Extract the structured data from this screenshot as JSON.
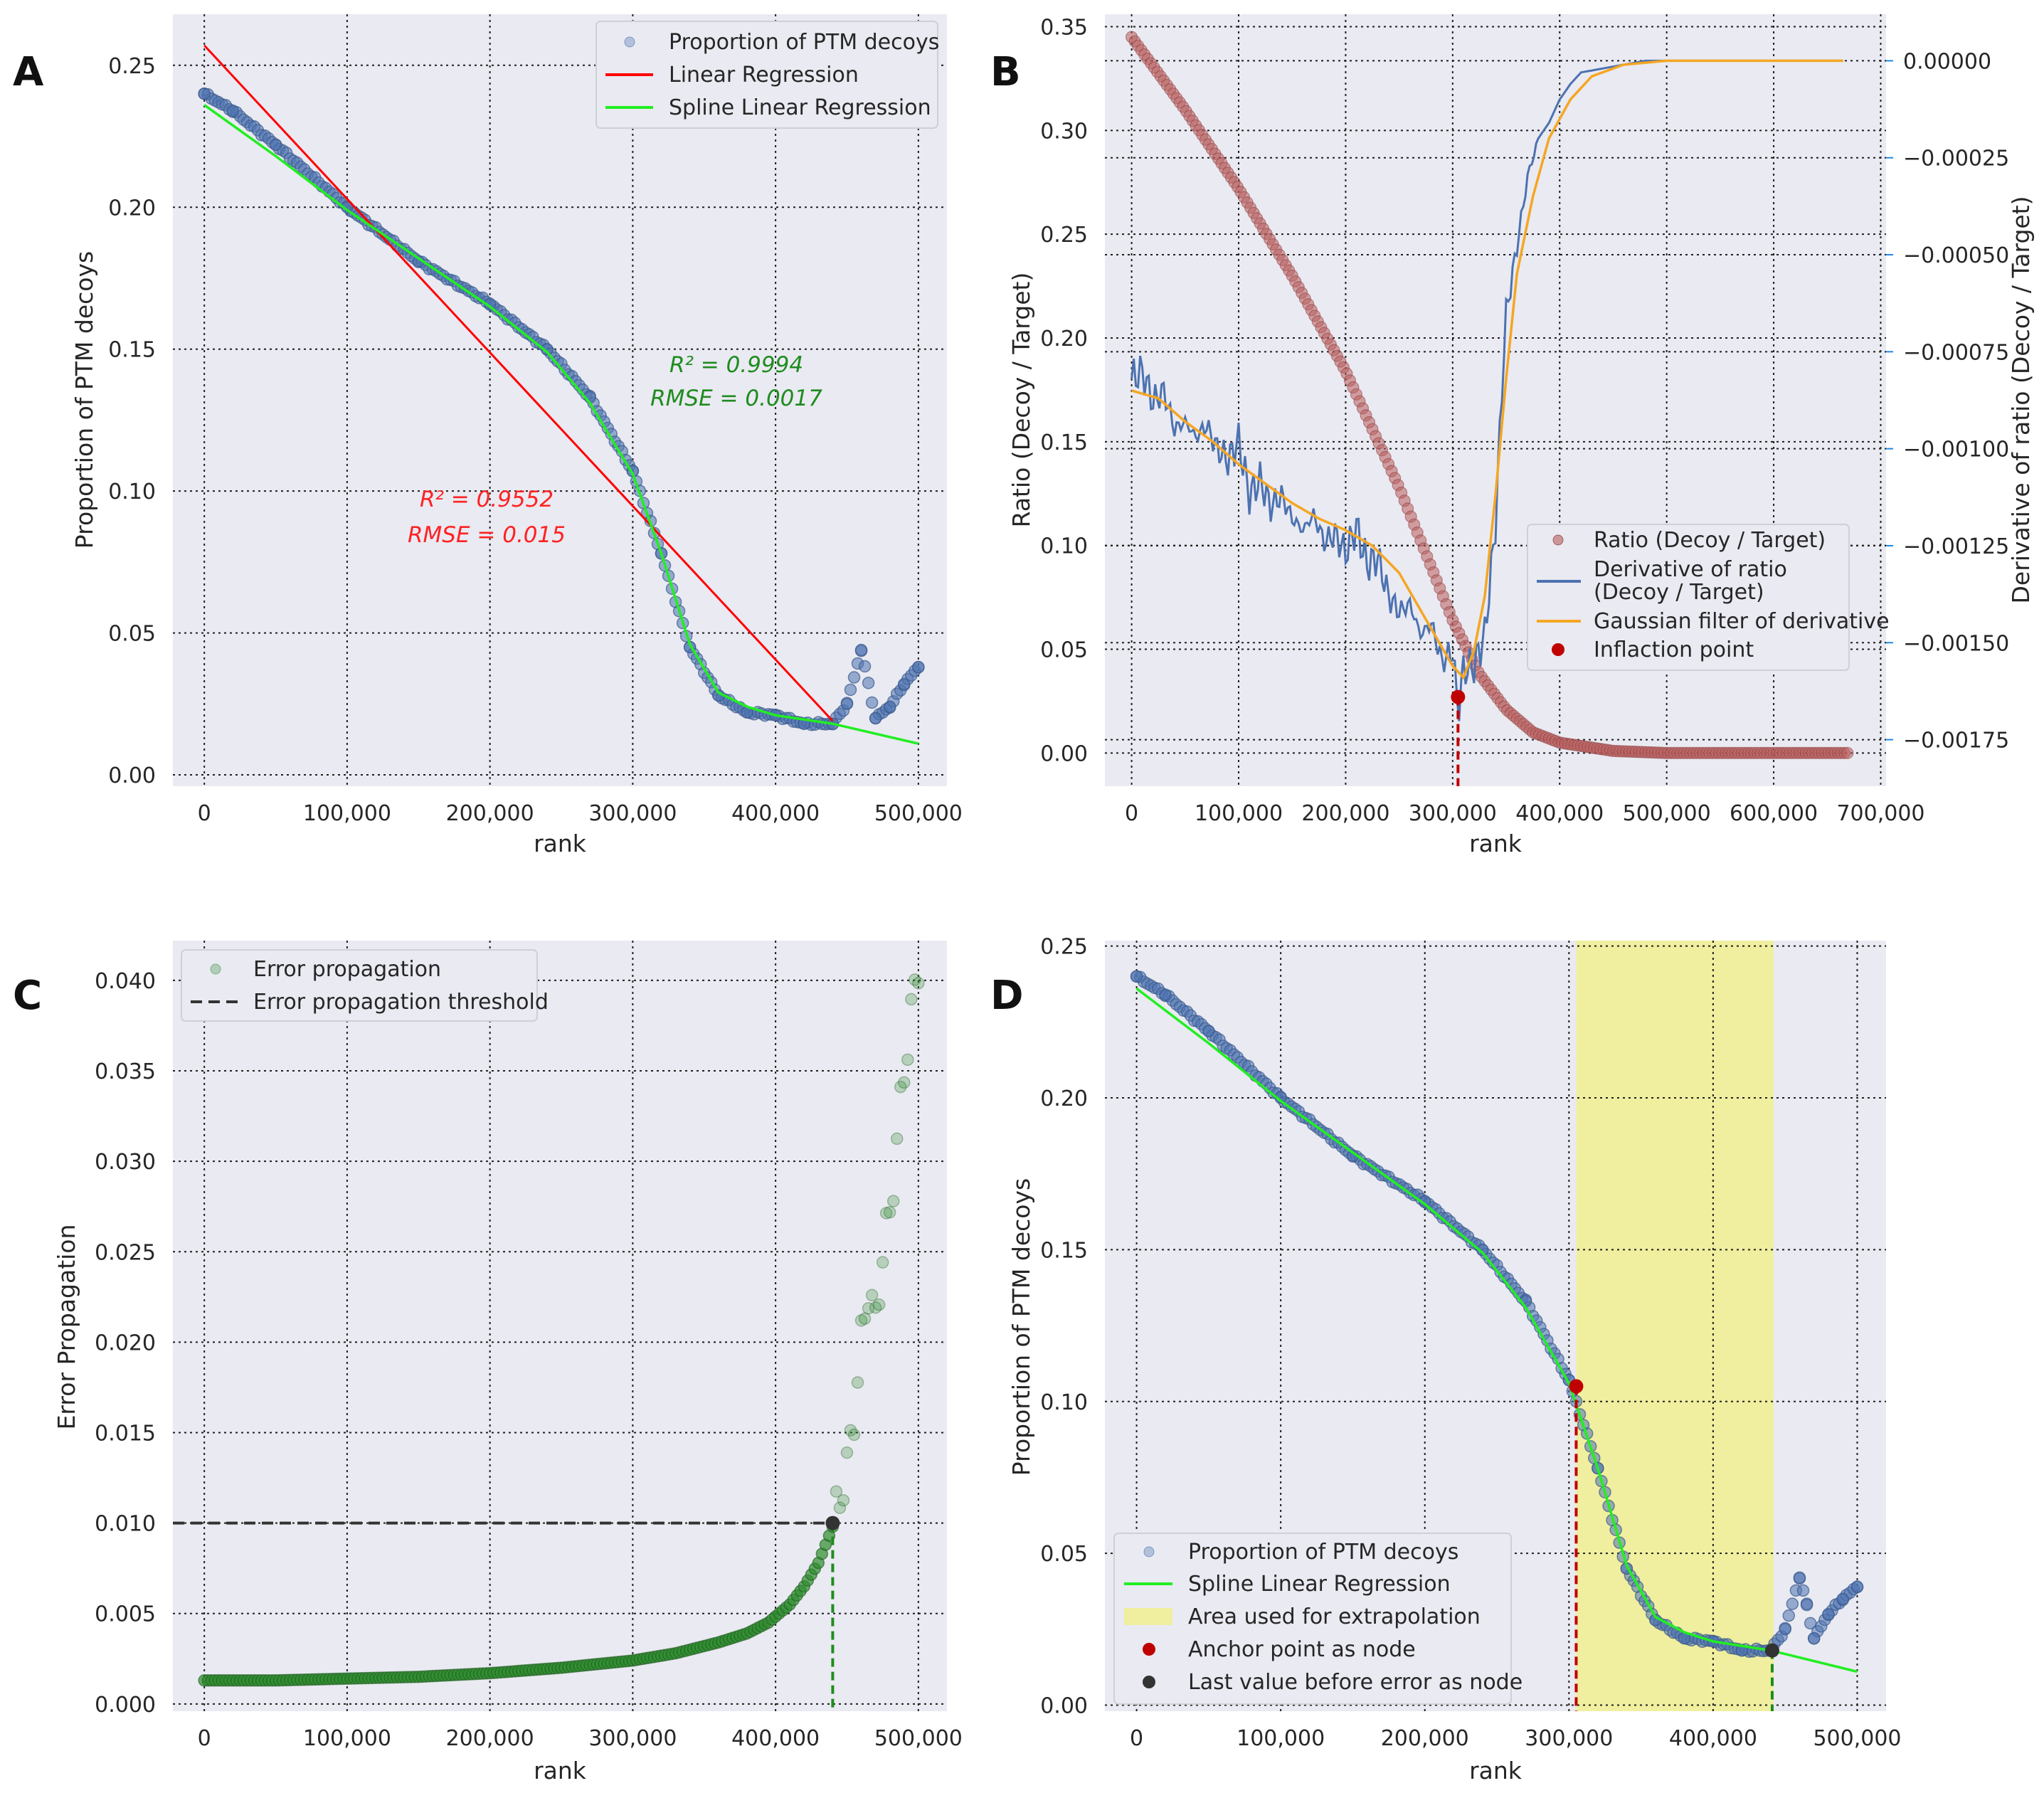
{
  "chart_data": [
    {
      "panel": "A",
      "type": "scatter",
      "xlabel": "rank",
      "ylabel": "Proportion of PTM decoys",
      "xlim": [
        -22000,
        520000
      ],
      "ylim": [
        -0.004,
        0.268
      ],
      "xticks": [
        0,
        100000,
        200000,
        300000,
        400000,
        500000
      ],
      "xtick_labels": [
        "0",
        "100,000",
        "200,000",
        "300,000",
        "400,000",
        "500,000"
      ],
      "yticks": [
        0.0,
        0.05,
        0.1,
        0.15,
        0.2,
        0.25
      ],
      "ytick_labels": [
        "0.00",
        "0.05",
        "0.10",
        "0.15",
        "0.20",
        "0.25"
      ],
      "series": [
        {
          "name": "Proportion of PTM decoys",
          "kind": "scatter",
          "color": "#4c72b0",
          "x": [
            0,
            20000,
            50000,
            100000,
            150000,
            200000,
            240000,
            270000,
            300000,
            320000,
            340000,
            360000,
            380000,
            400000,
            420000,
            440000,
            450000,
            460000,
            470000,
            480000,
            490000,
            500000
          ],
          "y": [
            0.24,
            0.234,
            0.222,
            0.2,
            0.181,
            0.166,
            0.15,
            0.133,
            0.107,
            0.078,
            0.045,
            0.028,
            0.022,
            0.021,
            0.018,
            0.018,
            0.025,
            0.044,
            0.02,
            0.024,
            0.032,
            0.038
          ]
        },
        {
          "name": "Linear Regression",
          "kind": "line",
          "color": "#ff0000",
          "x": [
            0,
            440000
          ],
          "y": [
            0.257,
            0.019
          ]
        },
        {
          "name": "Spline Linear Regression",
          "kind": "line",
          "color": "#22ee22",
          "x": [
            0,
            50000,
            100000,
            150000,
            200000,
            240000,
            270000,
            300000,
            320000,
            340000,
            360000,
            380000,
            400000,
            440000,
            500000
          ],
          "y": [
            0.236,
            0.218,
            0.199,
            0.182,
            0.165,
            0.149,
            0.131,
            0.106,
            0.078,
            0.046,
            0.029,
            0.024,
            0.021,
            0.018,
            0.011
          ]
        }
      ],
      "legend": {
        "position": "upper right",
        "entries": [
          "Proportion of PTM decoys",
          "Linear Regression",
          "Spline Linear Regression"
        ]
      },
      "annotations": [
        {
          "text_line1": "R² = 0.9994",
          "text_line2": "RMSE = 0.0017",
          "color": "#1e8c1e"
        },
        {
          "text_line1": "R² = 0.9552",
          "text_line2": "RMSE = 0.015",
          "color": "#ff2222"
        }
      ]
    },
    {
      "panel": "B",
      "type": "line",
      "xlabel": "rank",
      "ylabel": "Ratio (Decoy / Target)",
      "ylabel_right": "Derivative of ratio (Decoy / Target)",
      "xlim": [
        -25000,
        705000
      ],
      "ylim": [
        -0.016,
        0.356
      ],
      "ylim_right": [
        -0.00187,
        0.00012
      ],
      "xticks": [
        0,
        100000,
        200000,
        300000,
        400000,
        500000,
        600000,
        700000
      ],
      "xtick_labels": [
        "0",
        "100,000",
        "200,000",
        "300,000",
        "400,000",
        "500,000",
        "600,000",
        "700,000"
      ],
      "yticks": [
        0.0,
        0.05,
        0.1,
        0.15,
        0.2,
        0.25,
        0.3,
        0.35
      ],
      "ytick_labels": [
        "0.00",
        "0.05",
        "0.10",
        "0.15",
        "0.20",
        "0.25",
        "0.30",
        "0.35"
      ],
      "yticks_right": [
        0.0,
        -0.00025,
        -0.0005,
        -0.00075,
        -0.001,
        -0.00125,
        -0.0015,
        -0.00175
      ],
      "ytick_labels_right": [
        "0.00000",
        "−0.00025",
        "−0.00050",
        "−0.00075",
        "−0.00100",
        "−0.00125",
        "−0.00150",
        "−0.00175"
      ],
      "series": [
        {
          "name": "Ratio (Decoy / Target)",
          "axis": "left",
          "color": "#b85c5c",
          "x": [
            0,
            50000,
            100000,
            150000,
            200000,
            250000,
            300000,
            325000,
            350000,
            375000,
            400000,
            450000,
            500000,
            550000,
            600000,
            670000
          ],
          "y": [
            0.345,
            0.31,
            0.272,
            0.23,
            0.184,
            0.128,
            0.064,
            0.038,
            0.021,
            0.01,
            0.005,
            0.001,
            0.0,
            0.0,
            0.0,
            0.0
          ]
        },
        {
          "name": "Derivative of ratio (Decoy / Target)",
          "axis": "right",
          "color": "#4c72b0",
          "x": [
            0,
            10000,
            20000,
            30000,
            40000,
            50000,
            60000,
            70000,
            80000,
            90000,
            100000,
            110000,
            120000,
            130000,
            140000,
            150000,
            160000,
            170000,
            180000,
            190000,
            200000,
            210000,
            220000,
            230000,
            240000,
            250000,
            260000,
            270000,
            280000,
            290000,
            300000,
            305000,
            310000,
            320000,
            330000,
            340000,
            345000,
            350000,
            360000,
            370000,
            380000,
            390000,
            400000,
            410000,
            420000,
            440000,
            460000,
            480000,
            500000
          ],
          "y": [
            -0.00082,
            -0.0008,
            -0.00088,
            -0.00085,
            -0.00095,
            -0.00093,
            -0.00097,
            -0.00094,
            -0.001,
            -0.00103,
            -0.00098,
            -0.00112,
            -0.00108,
            -0.00115,
            -0.00112,
            -0.00118,
            -0.00121,
            -0.00117,
            -0.00124,
            -0.00122,
            -0.00127,
            -0.0012,
            -0.0013,
            -0.00128,
            -0.00138,
            -0.00142,
            -0.0014,
            -0.00148,
            -0.00145,
            -0.00155,
            -0.00152,
            -0.00168,
            -0.00157,
            -0.00156,
            -0.00148,
            -0.0012,
            -0.0009,
            -0.00065,
            -0.00048,
            -0.0003,
            -0.0002,
            -0.00016,
            -0.0001,
            -6e-05,
            -3e-05,
            -2e-05,
            -1e-05,
            0.0,
            0.0
          ]
        },
        {
          "name": "Gaussian filter of derivative",
          "axis": "right",
          "color": "#f5a623",
          "x": [
            0,
            25000,
            50000,
            75000,
            100000,
            125000,
            150000,
            175000,
            200000,
            225000,
            250000,
            275000,
            300000,
            310000,
            320000,
            330000,
            340000,
            350000,
            360000,
            375000,
            390000,
            410000,
            430000,
            460000,
            500000,
            550000,
            600000,
            665000
          ],
          "y": [
            -0.00085,
            -0.00087,
            -0.00093,
            -0.00098,
            -0.00104,
            -0.00109,
            -0.00114,
            -0.00118,
            -0.00121,
            -0.00125,
            -0.00132,
            -0.00144,
            -0.00156,
            -0.00159,
            -0.00152,
            -0.00138,
            -0.00112,
            -0.00082,
            -0.00055,
            -0.00035,
            -0.0002,
            -0.0001,
            -4e-05,
            -1e-05,
            0.0,
            0.0,
            0.0,
            0.0
          ]
        },
        {
          "name": "Inflaction point",
          "axis": "left",
          "color": "#c00000",
          "x": [
            305000
          ],
          "y": [
            0.027
          ]
        }
      ],
      "legend": {
        "position": "lower right",
        "entries": [
          "Ratio (Decoy / Target)",
          "Derivative of ratio",
          "(Decoy / Target)",
          "Gaussian filter of derivative",
          "Inflaction point"
        ]
      }
    },
    {
      "panel": "C",
      "type": "scatter",
      "xlabel": "rank",
      "ylabel": "Error Propagation",
      "xlim": [
        -22000,
        520000
      ],
      "ylim": [
        -0.0004,
        0.0422
      ],
      "xticks": [
        0,
        100000,
        200000,
        300000,
        400000,
        500000
      ],
      "xtick_labels": [
        "0",
        "100,000",
        "200,000",
        "300,000",
        "400,000",
        "500,000"
      ],
      "yticks": [
        0.0,
        0.005,
        0.01,
        0.015,
        0.02,
        0.025,
        0.03,
        0.035,
        0.04
      ],
      "ytick_labels": [
        "0.000",
        "0.005",
        "0.010",
        "0.015",
        "0.020",
        "0.025",
        "0.030",
        "0.035",
        "0.040"
      ],
      "series": [
        {
          "name": "Error propagation",
          "kind": "scatter",
          "color": "#2e8b2e",
          "x": [
            0,
            50000,
            100000,
            150000,
            200000,
            250000,
            300000,
            330000,
            360000,
            380000,
            395000,
            410000,
            420000,
            430000,
            440000,
            450000,
            455000,
            460000,
            465000,
            470000,
            475000,
            480000,
            485000,
            490000,
            495000,
            500000
          ],
          "y": [
            0.0013,
            0.0013,
            0.0014,
            0.0015,
            0.0017,
            0.002,
            0.0024,
            0.0028,
            0.0034,
            0.0039,
            0.0045,
            0.0055,
            0.0065,
            0.0078,
            0.0098,
            0.013,
            0.016,
            0.02,
            0.023,
            0.021,
            0.025,
            0.027,
            0.031,
            0.035,
            0.038,
            0.041
          ]
        },
        {
          "name": "Error propagation threshold",
          "kind": "hline",
          "color": "#333333",
          "y": 0.01,
          "x_end": 440000
        }
      ],
      "markers": [
        {
          "x": 440000,
          "y": 0.01,
          "color": "#333333"
        }
      ],
      "legend": {
        "position": "upper left",
        "entries": [
          "Error propagation",
          "Error propagation threshold"
        ]
      }
    },
    {
      "panel": "D",
      "type": "scatter",
      "xlabel": "rank",
      "ylabel": "Proportion of PTM decoys",
      "xlim": [
        -22000,
        520000
      ],
      "ylim": [
        -0.002,
        0.2518
      ],
      "xticks": [
        0,
        100000,
        200000,
        300000,
        400000,
        500000
      ],
      "xtick_labels": [
        "0",
        "100,000",
        "200,000",
        "300,000",
        "400,000",
        "500,000"
      ],
      "yticks": [
        0.0,
        0.05,
        0.1,
        0.15,
        0.2,
        0.25
      ],
      "ytick_labels": [
        "0.00",
        "0.05",
        "0.10",
        "0.15",
        "0.20",
        "0.25"
      ],
      "shaded_region": {
        "x_start": 305000,
        "x_end": 442000,
        "color": "#f0ef9f"
      },
      "series": [
        {
          "name": "Proportion of PTM decoys",
          "kind": "scatter",
          "color": "#4c72b0",
          "x": [
            0,
            20000,
            50000,
            100000,
            150000,
            200000,
            240000,
            270000,
            300000,
            320000,
            340000,
            360000,
            380000,
            400000,
            420000,
            440000,
            450000,
            460000,
            465000,
            470000,
            480000,
            490000,
            500000
          ],
          "y": [
            0.24,
            0.234,
            0.222,
            0.2,
            0.181,
            0.166,
            0.15,
            0.133,
            0.107,
            0.078,
            0.045,
            0.028,
            0.022,
            0.021,
            0.018,
            0.018,
            0.025,
            0.042,
            0.033,
            0.022,
            0.03,
            0.035,
            0.039
          ]
        },
        {
          "name": "Spline Linear Regression",
          "kind": "line",
          "color": "#22ee22",
          "x": [
            0,
            50000,
            100000,
            150000,
            200000,
            240000,
            270000,
            300000,
            320000,
            340000,
            360000,
            380000,
            400000,
            440000,
            500000
          ],
          "y": [
            0.236,
            0.218,
            0.199,
            0.182,
            0.165,
            0.149,
            0.131,
            0.106,
            0.078,
            0.046,
            0.029,
            0.024,
            0.021,
            0.018,
            0.011
          ]
        }
      ],
      "markers": [
        {
          "name": "Anchor point as node",
          "x": 305000,
          "y": 0.105,
          "color": "#c00000"
        },
        {
          "name": "Last value before error as node",
          "x": 441000,
          "y": 0.018,
          "color": "#333333"
        }
      ],
      "legend": {
        "position": "lower left",
        "entries": [
          "Proportion of PTM decoys",
          "Spline Linear Regression",
          "Area used for extrapolation",
          "Anchor point as node",
          "Last value before error as node"
        ]
      }
    }
  ]
}
